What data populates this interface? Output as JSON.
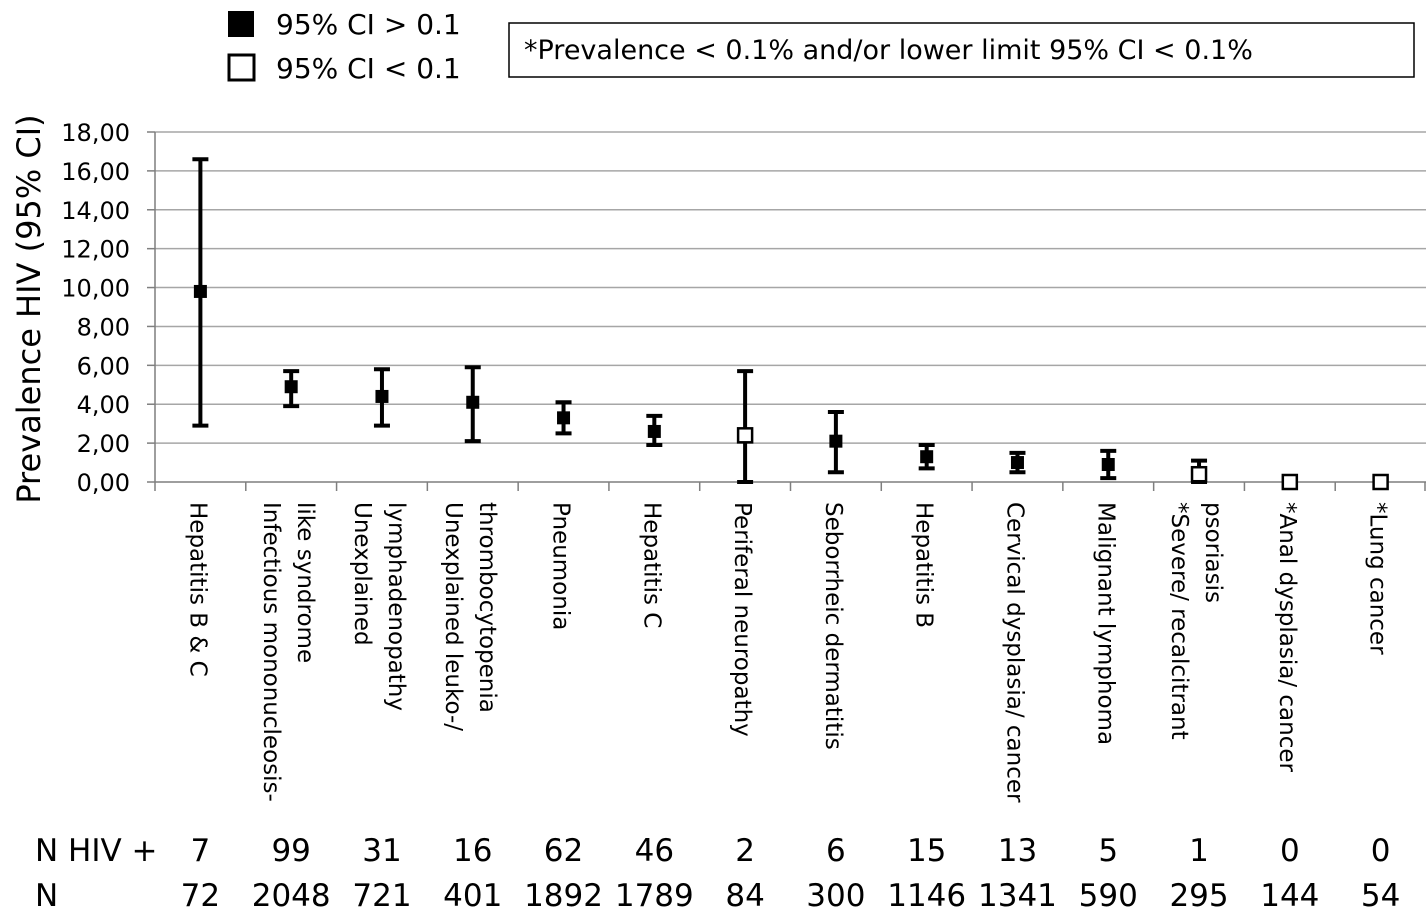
{
  "legend": {
    "filled_label": "95% CI > 0.1",
    "open_label": "95% CI < 0.1"
  },
  "note": "*Prevalence < 0.1% and/or lower limit 95% CI < 0.1%",
  "chart_data": {
    "type": "scatter",
    "ylabel": "Prevalence HIV (95% CI)",
    "ylim": [
      0,
      18
    ],
    "yticks": [
      "0,00",
      "2,00",
      "4,00",
      "6,00",
      "8,00",
      "10,00",
      "12,00",
      "14,00",
      "16,00",
      "18,00"
    ],
    "ytick_values": [
      0,
      2,
      4,
      6,
      8,
      10,
      12,
      14,
      16,
      18
    ],
    "grid": true,
    "legend_position": "top-left",
    "categories": [
      [
        "Hepatitis B & C"
      ],
      [
        "Infectious mononucleosis-",
        "like syndrome"
      ],
      [
        "Unexplained",
        "lymphadenopathy"
      ],
      [
        "Unexplained leuko-/",
        "thrombocytopenia"
      ],
      [
        "Pneumonia"
      ],
      [
        "Hepatitis C"
      ],
      [
        "Periferal neuropathy"
      ],
      [
        "Seborrheic dermatitis"
      ],
      [
        "Hepatitis B"
      ],
      [
        "Cervical dysplasia/ cancer"
      ],
      [
        "Malignant lymphoma"
      ],
      [
        "*Severe/ recalcitrant",
        "psoriasis"
      ],
      [
        "*Anal dysplasia/ cancer"
      ],
      [
        "*Lung cancer"
      ]
    ],
    "prevalence": [
      9.8,
      4.9,
      4.4,
      4.1,
      3.3,
      2.6,
      2.4,
      2.1,
      1.3,
      1.0,
      0.9,
      0.4,
      0.0,
      0.0
    ],
    "ci_lower": [
      2.9,
      3.9,
      2.9,
      2.1,
      2.5,
      1.9,
      0.0,
      0.5,
      0.7,
      0.5,
      0.2,
      0.0,
      0.0,
      0.0
    ],
    "ci_upper": [
      16.6,
      5.7,
      5.8,
      5.9,
      4.1,
      3.4,
      5.7,
      3.6,
      1.9,
      1.5,
      1.6,
      1.1,
      0.0,
      0.0
    ],
    "ci_gt_01": [
      true,
      true,
      true,
      true,
      true,
      true,
      false,
      true,
      true,
      true,
      true,
      false,
      false,
      false
    ],
    "n_hiv_label": "N HIV +",
    "n_hiv": [
      "7",
      "99",
      "31",
      "16",
      "62",
      "46",
      "2",
      "6",
      "15",
      "13",
      "5",
      "1",
      "0",
      "0"
    ],
    "n_label": "N",
    "n": [
      "72",
      "2048",
      "721",
      "401",
      "1892",
      "1789",
      "84",
      "300",
      "1146",
      "1341",
      "590",
      "295",
      "144",
      "54"
    ]
  }
}
